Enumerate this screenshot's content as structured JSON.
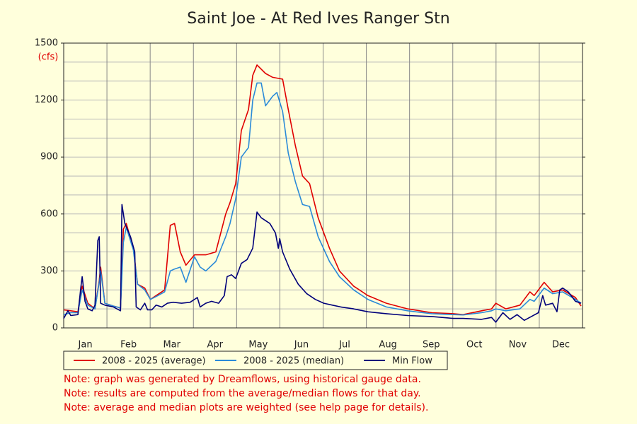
{
  "chart_data": {
    "type": "line",
    "title": "Saint Joe - At Red Ives Ranger Stn",
    "ylabel": "(cfs)",
    "categories": [
      "Jan",
      "Feb",
      "Mar",
      "Apr",
      "May",
      "Jun",
      "Jul",
      "Aug",
      "Sep",
      "Oct",
      "Nov",
      "Dec"
    ],
    "xlim": [
      1,
      366
    ],
    "ylim": [
      0,
      1500
    ],
    "yticks": [
      0,
      300,
      600,
      900,
      1200,
      1500
    ],
    "yminorticks": [
      0,
      100,
      200,
      300,
      400,
      500,
      600,
      700,
      800,
      900,
      1000,
      1100,
      1200,
      1300,
      1400,
      1500
    ],
    "grid": true,
    "legend": "bottom",
    "series": [
      {
        "name": "2008 - 2025 (average)",
        "color": "#e00000",
        "x": [
          1,
          6,
          11,
          14,
          18,
          23,
          26,
          27,
          30,
          36,
          41,
          43,
          45,
          50,
          53,
          58,
          62,
          66,
          72,
          76,
          79,
          83,
          87,
          93,
          101,
          108,
          115,
          118,
          122,
          126,
          131,
          134,
          137,
          143,
          148,
          155,
          159,
          164,
          169,
          174,
          180,
          188,
          195,
          205,
          215,
          228,
          243,
          260,
          275,
          282,
          295,
          302,
          305,
          312,
          322,
          329,
          332,
          339,
          345,
          352,
          361,
          365
        ],
        "values": [
          95,
          90,
          85,
          220,
          130,
          100,
          250,
          320,
          130,
          115,
          105,
          520,
          550,
          420,
          230,
          210,
          150,
          170,
          200,
          540,
          550,
          400,
          330,
          385,
          385,
          400,
          600,
          660,
          760,
          1040,
          1150,
          1330,
          1385,
          1340,
          1320,
          1310,
          1150,
          960,
          800,
          760,
          580,
          420,
          300,
          220,
          170,
          130,
          100,
          80,
          75,
          70,
          90,
          100,
          130,
          100,
          120,
          190,
          170,
          240,
          190,
          200,
          160,
          115
        ]
      },
      {
        "name": "2008 - 2025 (median)",
        "color": "#2a8ad8",
        "x": [
          1,
          6,
          11,
          14,
          18,
          23,
          26,
          27,
          30,
          36,
          41,
          43,
          45,
          50,
          53,
          58,
          62,
          66,
          72,
          76,
          79,
          83,
          87,
          93,
          97,
          101,
          108,
          115,
          118,
          122,
          126,
          131,
          134,
          137,
          140,
          143,
          148,
          151,
          155,
          159,
          164,
          169,
          174,
          180,
          188,
          195,
          205,
          215,
          228,
          243,
          260,
          275,
          282,
          295,
          302,
          305,
          312,
          322,
          329,
          332,
          339,
          345,
          352,
          361,
          365
        ],
        "values": [
          70,
          80,
          80,
          200,
          120,
          100,
          240,
          300,
          130,
          115,
          105,
          450,
          530,
          410,
          230,
          200,
          150,
          165,
          190,
          300,
          310,
          320,
          240,
          375,
          320,
          300,
          350,
          480,
          550,
          680,
          900,
          950,
          1200,
          1290,
          1290,
          1170,
          1220,
          1240,
          1140,
          920,
          770,
          650,
          640,
          480,
          350,
          270,
          200,
          150,
          110,
          90,
          75,
          70,
          68,
          80,
          90,
          100,
          90,
          100,
          150,
          140,
          210,
          180,
          190,
          150,
          130
        ]
      },
      {
        "name": "Min Flow",
        "color": "#00007a",
        "x": [
          1,
          4,
          6,
          11,
          13,
          14,
          16,
          18,
          21,
          23,
          25,
          26,
          27,
          30,
          36,
          41,
          42,
          44,
          48,
          51,
          52,
          55,
          58,
          60,
          63,
          66,
          70,
          74,
          78,
          84,
          90,
          95,
          97,
          101,
          105,
          110,
          114,
          116,
          119,
          122,
          126,
          130,
          134,
          137,
          140,
          146,
          150,
          152,
          153,
          155,
          160,
          166,
          172,
          178,
          184,
          190,
          196,
          205,
          215,
          228,
          243,
          260,
          275,
          282,
          295,
          302,
          305,
          310,
          315,
          320,
          325,
          330,
          335,
          338,
          340,
          345,
          348,
          350,
          352,
          356,
          361,
          365
        ],
        "values": [
          50,
          90,
          65,
          70,
          210,
          270,
          140,
          100,
          90,
          120,
          460,
          480,
          130,
          120,
          110,
          90,
          650,
          550,
          480,
          400,
          110,
          95,
          130,
          95,
          95,
          120,
          110,
          130,
          135,
          130,
          135,
          160,
          110,
          130,
          140,
          130,
          170,
          270,
          280,
          260,
          340,
          360,
          420,
          610,
          580,
          550,
          500,
          420,
          470,
          400,
          310,
          230,
          180,
          150,
          130,
          120,
          110,
          100,
          85,
          75,
          65,
          60,
          50,
          50,
          45,
          55,
          30,
          80,
          45,
          70,
          40,
          60,
          80,
          170,
          120,
          130,
          85,
          200,
          210,
          190,
          140,
          130
        ]
      }
    ],
    "notes": [
      "Note: graph was generated by Dreamflows, using historical gauge data.",
      "Note: results are computed from the average/median flows for that day.",
      "Note: average and median plots are weighted (see help page for details)."
    ]
  }
}
